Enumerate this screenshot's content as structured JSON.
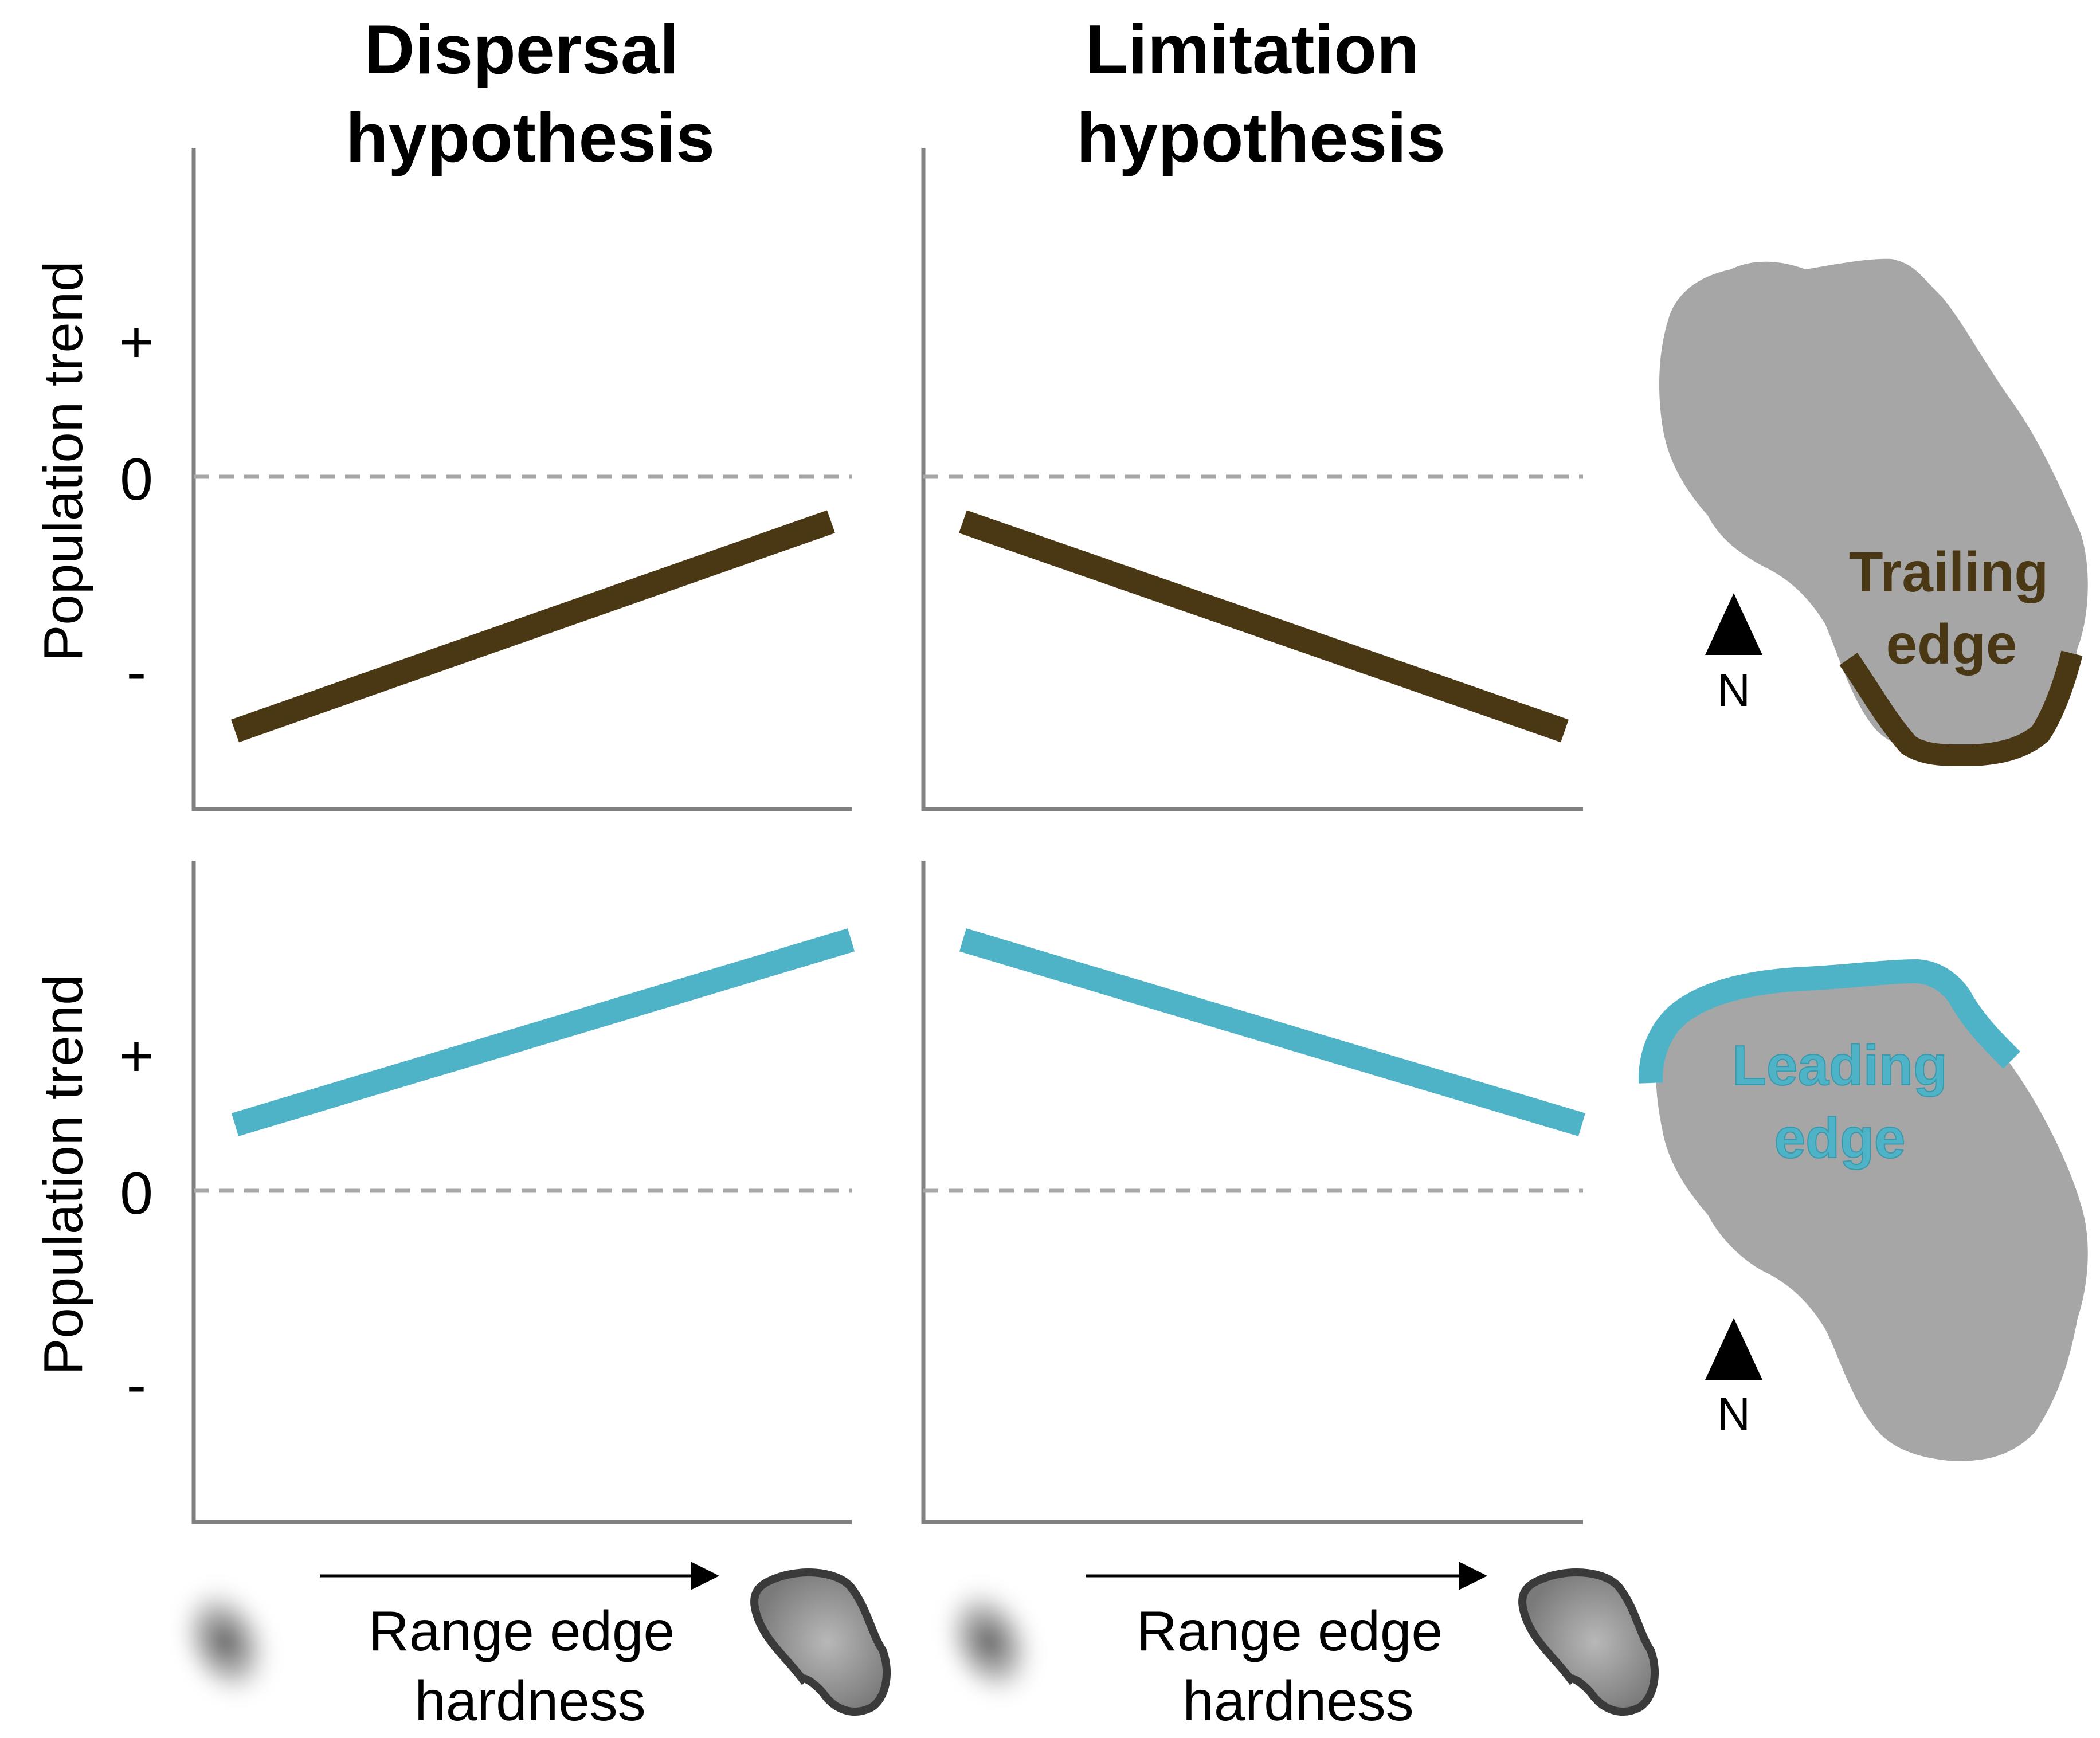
{
  "columns": [
    {
      "title_line1": "Dispersal",
      "title_line2": "hypothesis"
    },
    {
      "title_line1": "Limitation",
      "title_line2": "hypothesis"
    }
  ],
  "ylabel": "Population trend",
  "ticks": {
    "plus": "+",
    "zero": "0",
    "minus": "-"
  },
  "xlabel_line1": "Range edge",
  "xlabel_line2": "hardness",
  "maps": {
    "trailing": {
      "label_line1": "Trailing",
      "label_line2": "edge",
      "north": "N"
    },
    "leading": {
      "label_line1": "Leading",
      "label_line2": "edge",
      "north": "N"
    }
  },
  "colors": {
    "trailing": "#4a3814",
    "leading": "#4fb3c8",
    "axis": "#808080",
    "zero_line": "#a6a6a6",
    "map_fill": "#a6a6a6"
  },
  "chart_data": [
    {
      "type": "line",
      "panel": "Dispersal hypothesis / trailing edge",
      "x": [
        0,
        1
      ],
      "y": [
        -0.85,
        -0.15
      ],
      "ylim": [
        -1.4,
        1.1
      ],
      "xlabel": "Range edge hardness",
      "ylabel": "Population trend",
      "trend": "increasing"
    },
    {
      "type": "line",
      "panel": "Limitation hypothesis / trailing edge",
      "x": [
        0,
        1
      ],
      "y": [
        -0.15,
        -0.85
      ],
      "ylim": [
        -1.4,
        1.1
      ],
      "xlabel": "Range edge hardness",
      "ylabel": "Population trend",
      "trend": "decreasing"
    },
    {
      "type": "line",
      "panel": "Dispersal hypothesis / leading edge",
      "x": [
        0,
        1
      ],
      "y": [
        0.25,
        0.95
      ],
      "ylim": [
        -1.25,
        1.25
      ],
      "xlabel": "Range edge hardness",
      "ylabel": "Population trend",
      "trend": "increasing"
    },
    {
      "type": "line",
      "panel": "Limitation hypothesis / leading edge",
      "x": [
        0,
        1
      ],
      "y": [
        0.95,
        0.25
      ],
      "ylim": [
        -1.25,
        1.25
      ],
      "xlabel": "Range edge hardness",
      "ylabel": "Population trend",
      "trend": "decreasing"
    }
  ]
}
